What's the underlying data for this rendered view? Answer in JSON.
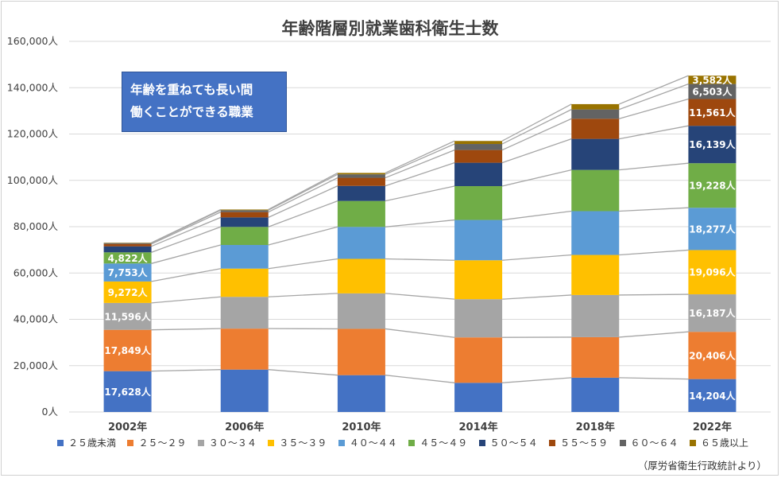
{
  "chart_data": {
    "type": "bar",
    "stacked": true,
    "title": "年齢階層別就業歯科衛生士数",
    "categories": [
      "2002年",
      "2006年",
      "2010年",
      "2014年",
      "2018年",
      "2022年"
    ],
    "ylim": [
      0,
      160000
    ],
    "yticks": [
      "0人",
      "20,000人",
      "40,000人",
      "60,000人",
      "80,000人",
      "100,000人",
      "120,000人",
      "140,000人",
      "160,000人"
    ],
    "ytick_values": [
      0,
      20000,
      40000,
      60000,
      80000,
      100000,
      120000,
      140000,
      160000
    ],
    "grid": true,
    "legend_position": "bottom",
    "series": [
      {
        "name": "２５歳未満",
        "color": "#4472c4",
        "values": [
          17628,
          18300,
          15900,
          12600,
          14800,
          14204
        ],
        "labels": [
          "17,628人",
          "",
          "",
          "",
          "",
          "14,204人"
        ]
      },
      {
        "name": "２５～２９",
        "color": "#ed7d31",
        "values": [
          17849,
          17700,
          20000,
          19600,
          17500,
          20406
        ],
        "labels": [
          "17,849人",
          "",
          "",
          "",
          "",
          "20,406人"
        ]
      },
      {
        "name": "３０～３４",
        "color": "#a5a5a5",
        "values": [
          11596,
          13700,
          15300,
          16500,
          18200,
          16187
        ],
        "labels": [
          "11,596人",
          "",
          "",
          "",
          "",
          "16,187人"
        ]
      },
      {
        "name": "３５～３９",
        "color": "#ffc000",
        "values": [
          9272,
          12200,
          14900,
          16800,
          17300,
          19096
        ],
        "labels": [
          "9,272人",
          "",
          "",
          "",
          "",
          "19,096人"
        ]
      },
      {
        "name": "４０～４４",
        "color": "#5b9bd5",
        "values": [
          7753,
          10200,
          13800,
          17400,
          18900,
          18277
        ],
        "labels": [
          "7,753人",
          "",
          "",
          "",
          "",
          "18,277人"
        ]
      },
      {
        "name": "４５～４９",
        "color": "#70ad47",
        "values": [
          4822,
          7800,
          11200,
          14600,
          17800,
          19228
        ],
        "labels": [
          "4,822人",
          "",
          "",
          "",
          "",
          "19,228人"
        ]
      },
      {
        "name": "５０～５４",
        "color": "#264478",
        "values": [
          2600,
          4100,
          6500,
          10100,
          13400,
          16139
        ],
        "labels": [
          "",
          "",
          "",
          "",
          "",
          "16,139人"
        ]
      },
      {
        "name": "５５～５９",
        "color": "#9e480e",
        "values": [
          1000,
          2300,
          3500,
          5500,
          8700,
          11561
        ],
        "labels": [
          "",
          "",
          "",
          "",
          "",
          "11,561人"
        ]
      },
      {
        "name": "６０～６４",
        "color": "#636363",
        "values": [
          400,
          800,
          1500,
          2600,
          4000,
          6503
        ],
        "labels": [
          "",
          "",
          "",
          "",
          "",
          "6,503人"
        ]
      },
      {
        "name": "６５歳以上",
        "color": "#997300",
        "values": [
          150,
          300,
          600,
          1300,
          2300,
          3582
        ],
        "labels": [
          "",
          "",
          "",
          "",
          "",
          "3,582人"
        ]
      }
    ],
    "annotation": [
      "年齢を重ねても長い間",
      "働くことができる職業"
    ],
    "source": "（厚労省衛生行政統計より）"
  }
}
